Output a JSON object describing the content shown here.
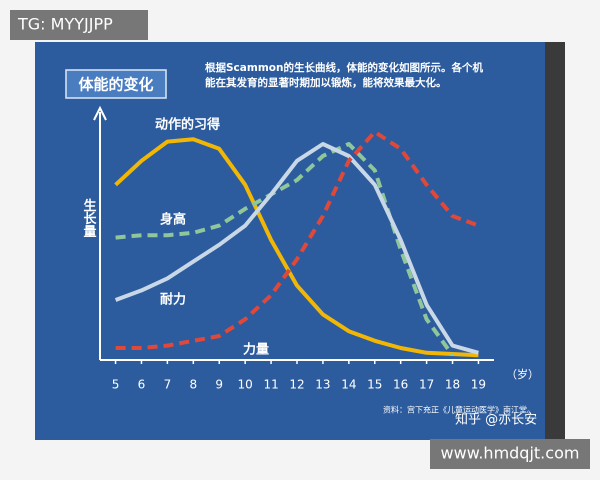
{
  "chart_data": {
    "type": "line",
    "title": "体能的变化",
    "description_lines": [
      "根据Scammon的生长曲线，体能的变化如图所示。各个机",
      "能在其发育的显著时期加以锻炼，能将效果最大化。"
    ],
    "y_label": "生长量",
    "x_label": "（岁）",
    "source": "资料：宫下充正《儿童运动医学》南江堂。",
    "x": [
      5,
      6,
      7,
      8,
      9,
      10,
      11,
      12,
      13,
      14,
      15,
      16,
      17,
      18,
      19
    ],
    "xlim": [
      4.4,
      19.6
    ],
    "xticks": [
      5,
      6,
      7,
      8,
      9,
      10,
      11,
      12,
      13,
      14,
      15,
      16,
      17,
      18,
      19
    ],
    "ylim": [
      0,
      100
    ],
    "series": [
      {
        "name": "动作的习得",
        "color": "#f2b705",
        "dashed": false,
        "values": [
          73,
          83,
          91,
          92,
          88,
          73,
          50,
          31,
          19,
          12,
          8,
          5,
          3,
          2.5,
          2
        ]
      },
      {
        "name": "身高",
        "color": "#8fc79a",
        "dashed": true,
        "values": [
          51,
          52,
          52,
          53,
          56,
          63,
          69,
          75,
          85,
          90,
          79,
          46,
          17,
          2,
          null
        ]
      },
      {
        "name": "耐力",
        "color": "#c9d8e6",
        "dashed": false,
        "values": [
          25,
          29,
          34,
          41,
          48,
          56,
          69,
          83,
          90,
          85,
          73,
          50,
          23,
          6,
          3
        ]
      },
      {
        "name": "力量",
        "color": "#e0483a",
        "dashed": true,
        "values": [
          5,
          5,
          6,
          8,
          10,
          17,
          27,
          42,
          60,
          83,
          95,
          88,
          73,
          60,
          56
        ]
      }
    ]
  },
  "overlays": {
    "top_left": "TG: MYYJJPP",
    "bottom_right": "www.hmdqjt.com",
    "credit": "知乎 @亦长安"
  }
}
